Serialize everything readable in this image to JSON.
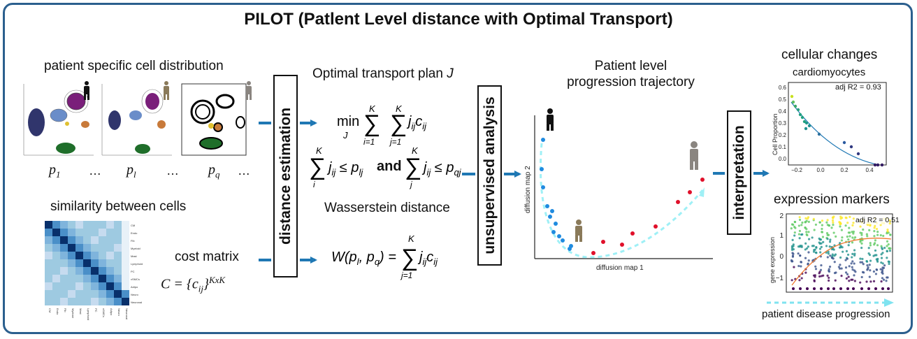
{
  "title": "PILOT  (Patlent Level distance with Optimal Transport)",
  "left_panel": {
    "distribution_heading": "patient specific cell distribution",
    "patient_labels": [
      "p",
      "p",
      "p"
    ],
    "patient_subscripts": [
      "1",
      "l",
      "q"
    ],
    "ellipsis": "…",
    "similarity_heading": "similarity between cells",
    "cost_matrix_label": "cost matrix",
    "cost_matrix_formula": "C = {c",
    "cost_matrix_sub": "ij",
    "cost_matrix_sup": "KxK"
  },
  "steps": {
    "distance_estimation": "distance estimation",
    "unsupervised_analysis": "unsupervised analysis",
    "interpretation": "interpretation"
  },
  "ot_panel": {
    "plan_heading": "Optimal transport plan",
    "plan_symbol": "J",
    "and_word": "and",
    "wasserstein_heading": "Wasserstein distance"
  },
  "trajectory_panel": {
    "heading_line1": "Patient level",
    "heading_line2": "progression trajectory",
    "xlabel": "diffusion map 1",
    "ylabel": "diffusion map 2"
  },
  "cellular_changes": {
    "heading": "cellular changes",
    "subheading": "cardiomyocytes",
    "annotation": "adj R2 = 0.93",
    "ylabel": "Cell Proportion",
    "yticks": [
      "0.6",
      "0.5",
      "0.4",
      "0.3",
      "0.2",
      "0.1",
      "0.0"
    ],
    "xticks": [
      "−0.2",
      "0.0",
      "0.2",
      "0.4"
    ]
  },
  "expression_markers": {
    "heading": "expression markers",
    "annotation": "adj R2 = 0.51",
    "ylabel": "gene expression",
    "yticks": [
      "2",
      "1",
      "0",
      "−1"
    ],
    "footer": "patient disease progression"
  },
  "heatmap_row_labels": [
    "CM",
    "Endo",
    "Fib",
    "Myeloid",
    "Mast",
    "Lymphoid",
    "PC",
    "vSMCs",
    "Adipo",
    "Neuro",
    "Neuronal"
  ],
  "colors": {
    "frame": "#2b5f8e",
    "arrow": "#1f78b4",
    "dashed": "#7fe3f0"
  }
}
